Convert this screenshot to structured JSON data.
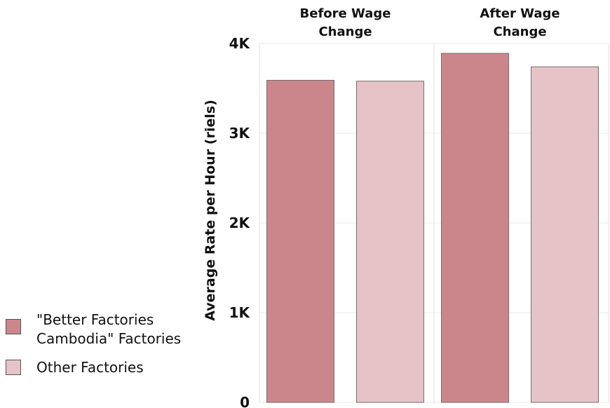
{
  "chart_data": {
    "type": "bar",
    "panels": [
      "Before Wage\nChange",
      "After Wage\nChange"
    ],
    "series": [
      {
        "name": "\"Better Factories\nCambodia\" Factories",
        "values": [
          3590,
          3890
        ],
        "color": "#cb868c"
      },
      {
        "name": "Other Factories",
        "values": [
          3580,
          3740
        ],
        "color": "#e5c3c7"
      }
    ],
    "ylabel": "Average Rate per Hour (riels)",
    "ylim": [
      0,
      4000
    ],
    "yticks": [
      0,
      1000,
      2000,
      3000,
      4000
    ],
    "ytick_labels": [
      "0",
      "1K",
      "2K",
      "3K",
      "4K"
    ],
    "legend_position": "left"
  }
}
